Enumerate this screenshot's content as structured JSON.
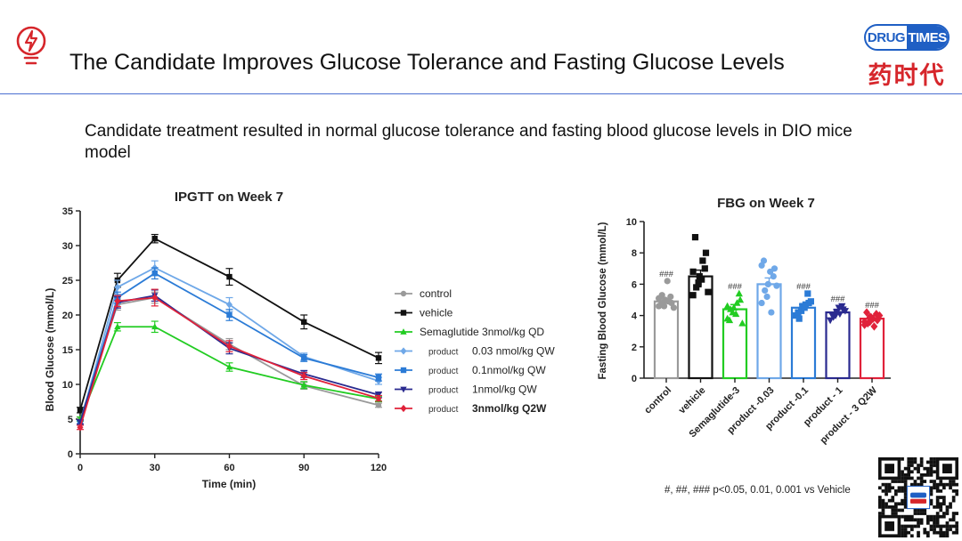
{
  "header": {
    "title": "The Candidate Improves Glucose Tolerance and Fasting Glucose Levels",
    "subtitle": "Candidate  treatment resulted in normal glucose tolerance and fasting blood glucose levels in DIO mice model",
    "logo_top_left": "DRUG",
    "logo_top_right": "TIMES",
    "logo_bottom": "药时代",
    "accent_color": "#4a6fd0",
    "icon": "lightbulb-icon"
  },
  "footnote": "#, ##, ### p<0.05, 0.01, 0.001 vs Vehicle",
  "chart_data": [
    {
      "type": "line",
      "title": "IPGTT on Week 7",
      "xlabel": "Time (min)",
      "ylabel": "Blood Glucose (mmol/L)",
      "x": [
        0,
        15,
        30,
        60,
        90,
        120
      ],
      "xticks": [
        "0",
        "30",
        "60",
        "90",
        "120"
      ],
      "xtick_values": [
        0,
        30,
        60,
        90,
        120
      ],
      "ylim": [
        0,
        35
      ],
      "yticks": [
        "0",
        "5",
        "10",
        "15",
        "20",
        "25",
        "30",
        "35"
      ],
      "legend_position": "right",
      "series": [
        {
          "name": "control",
          "prefix": "",
          "color": "#9a9a9a",
          "marker": "circle",
          "values": [
            5.0,
            21.5,
            22.5,
            15.8,
            9.8,
            7.0
          ],
          "errors": [
            0.3,
            0.8,
            0.8,
            0.8,
            0.5,
            0.3
          ]
        },
        {
          "name": "vehicle",
          "prefix": "",
          "color": "#111111",
          "marker": "square",
          "values": [
            6.3,
            25.0,
            31.0,
            25.5,
            19.0,
            13.8
          ],
          "errors": [
            0.4,
            1.0,
            0.6,
            1.2,
            1.0,
            0.8
          ]
        },
        {
          "name": "Semaglutide 3nmol/kg QD",
          "prefix": "",
          "color": "#22cc22",
          "marker": "triangle-up",
          "values": [
            5.0,
            18.3,
            18.3,
            12.5,
            9.9,
            7.9
          ],
          "errors": [
            0.3,
            0.6,
            0.8,
            0.6,
            0.5,
            0.4
          ]
        },
        {
          "name": "0.03 nmol/kg QW",
          "prefix": "product",
          "color": "#6fa8e8",
          "marker": "diamond",
          "values": [
            4.5,
            24.0,
            26.8,
            21.5,
            14.0,
            10.5
          ],
          "errors": [
            0.3,
            1.0,
            1.0,
            1.0,
            0.5,
            0.5
          ]
        },
        {
          "name": "0.1nmol/kg QW",
          "prefix": "product",
          "color": "#2b7bd6",
          "marker": "square",
          "values": [
            4.5,
            22.5,
            26.0,
            20.0,
            13.8,
            11.0
          ],
          "errors": [
            0.3,
            0.8,
            0.8,
            0.8,
            0.5,
            0.5
          ]
        },
        {
          "name": "1nmol/kg QW",
          "prefix": "product",
          "color": "#2a2a8f",
          "marker": "triangle-down",
          "values": [
            4.6,
            21.8,
            22.8,
            15.2,
            11.5,
            8.5
          ],
          "errors": [
            0.3,
            0.8,
            0.8,
            0.8,
            0.5,
            0.4
          ]
        },
        {
          "name": "3nmol/kg Q2W",
          "prefix": "product",
          "color": "#e0223a",
          "marker": "diamond",
          "values": [
            3.8,
            22.0,
            22.5,
            15.5,
            11.2,
            8.0
          ],
          "errors": [
            0.3,
            0.8,
            1.2,
            0.8,
            0.5,
            0.4
          ]
        }
      ]
    },
    {
      "type": "bar",
      "title": "FBG on Week 7",
      "ylabel": "Fasting Blood Glucose (mmol/L)",
      "ylim": [
        0,
        10
      ],
      "yticks": [
        "0",
        "2",
        "4",
        "6",
        "8",
        "10"
      ],
      "categories": [
        "control",
        "vehicle",
        "Semaglutide-3",
        "product -0.03",
        "product -0.1",
        "product - 1",
        "product - 3 Q2W"
      ],
      "values": [
        4.9,
        6.5,
        4.4,
        6.0,
        4.5,
        4.2,
        3.8
      ],
      "errors": [
        0.2,
        0.4,
        0.3,
        0.4,
        0.2,
        0.2,
        0.2
      ],
      "colors": [
        "#9a9a9a",
        "#111111",
        "#22cc22",
        "#6fa8e8",
        "#2b7bd6",
        "#2a2a8f",
        "#e0223a"
      ],
      "markers": [
        "circle",
        "square",
        "triangle-up",
        "circle",
        "square",
        "triangle-down",
        "diamond"
      ],
      "significance": [
        "###",
        "",
        "###",
        "",
        "###",
        "###",
        "###"
      ],
      "points": [
        [
          4.6,
          4.9,
          5.0,
          5.2,
          4.8,
          4.7,
          5.3,
          6.2,
          4.9,
          4.5,
          5.1,
          4.6
        ],
        [
          5.3,
          6.0,
          6.5,
          7.0,
          8.0,
          9.0,
          5.8,
          6.3,
          7.5,
          5.5,
          6.8,
          6.1
        ],
        [
          3.8,
          4.2,
          4.5,
          5.4,
          5.0,
          3.7,
          4.4,
          4.1,
          4.8,
          3.5,
          4.6
        ],
        [
          4.8,
          5.2,
          6.0,
          6.5,
          7.0,
          7.5,
          5.6,
          6.8,
          4.2,
          5.9,
          7.2
        ],
        [
          4.0,
          4.3,
          4.6,
          5.4,
          4.8,
          4.2,
          3.8,
          4.5,
          4.7,
          4.9
        ],
        [
          3.7,
          4.0,
          4.2,
          4.6,
          4.4,
          4.0,
          3.9,
          4.5,
          4.1,
          4.3
        ],
        [
          3.4,
          3.6,
          3.9,
          4.1,
          3.7,
          4.2,
          3.5,
          3.8,
          3.3,
          4.0,
          3.6,
          3.9
        ]
      ]
    }
  ]
}
